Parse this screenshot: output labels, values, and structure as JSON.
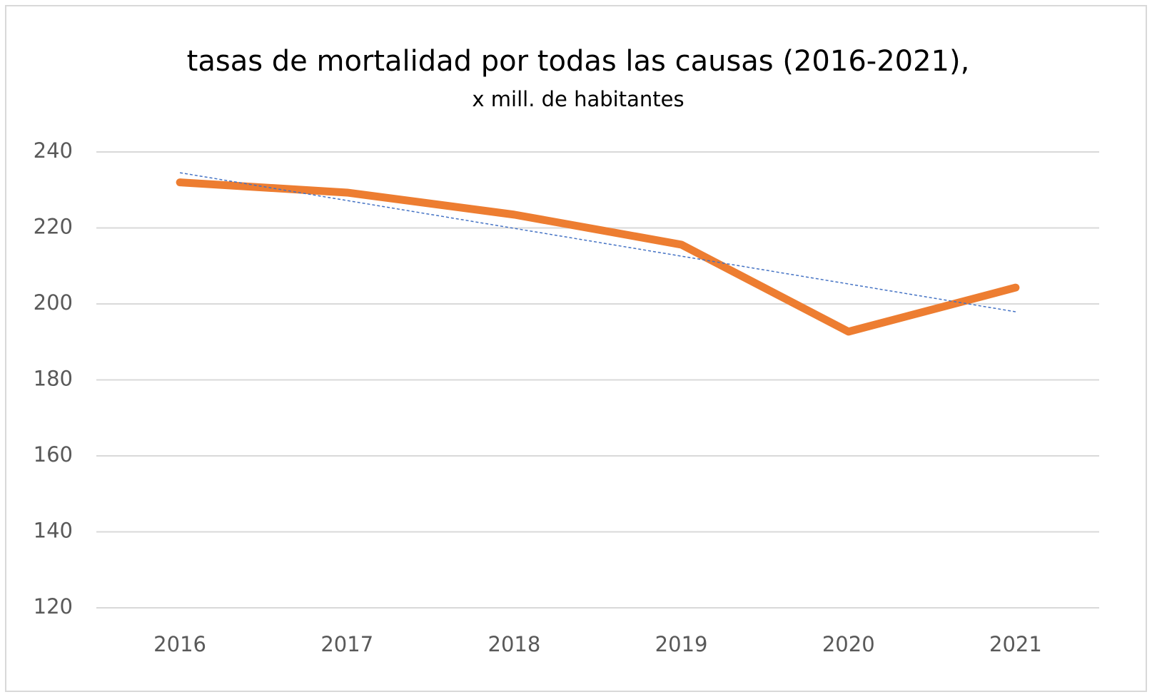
{
  "chart_data": {
    "type": "line",
    "title": "tasas de mortalidad por todas las causas (2016-2021),",
    "subtitle": "x mill. de habitantes",
    "categories": [
      "2016",
      "2017",
      "2018",
      "2019",
      "2020",
      "2021"
    ],
    "series": [
      {
        "name": "tasas de mortalidad",
        "color": "#ed7d31",
        "values": [
          232,
          229.3,
          223.5,
          215.6,
          192.7,
          204.3
        ]
      }
    ],
    "trendline": {
      "type": "linear",
      "color": "#4472c4"
    },
    "ylim": [
      120,
      240
    ],
    "yticks": [
      120,
      140,
      160,
      180,
      200,
      220,
      240
    ],
    "grid": true,
    "legend": false
  }
}
